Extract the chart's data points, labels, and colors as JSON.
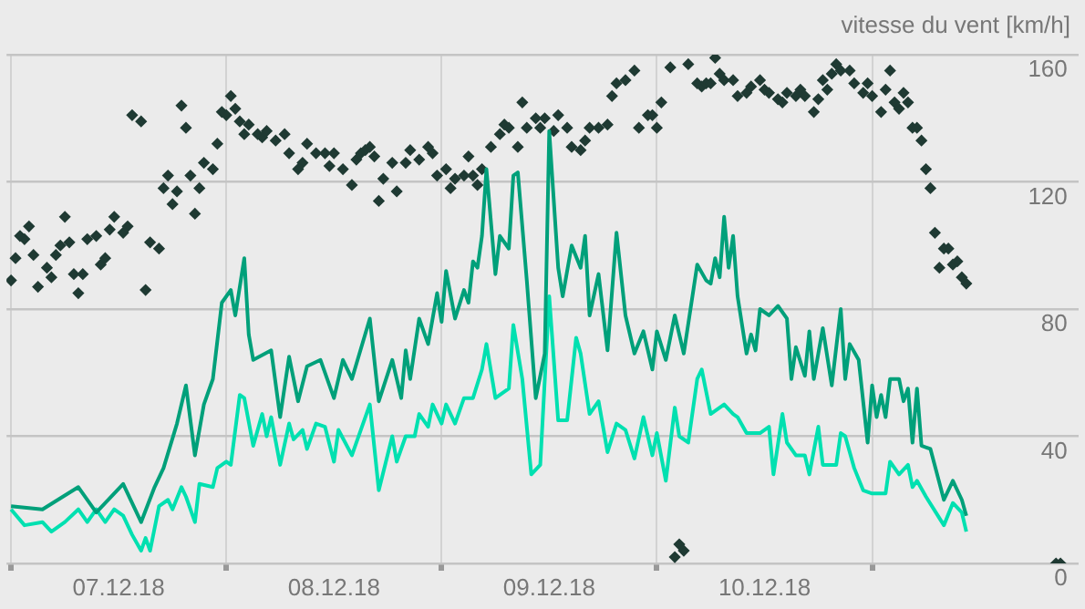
{
  "chart_data": {
    "type": "line",
    "ylabel": "vitesse du vent [km/h]",
    "xlim": [
      "--12-06T23:30",
      "--12-11T23:00"
    ],
    "xticks": [
      {
        "value": "--12-07",
        "label": null
      },
      {
        "value": "--12-07T12:00",
        "label": "07.12.18"
      },
      {
        "value": "--12-08",
        "label": null
      },
      {
        "value": "--12-08T12:00",
        "label": "08.12.18"
      },
      {
        "value": "--12-09",
        "label": null
      },
      {
        "value": "--12-09T12:00",
        "label": "09.12.18"
      },
      {
        "value": "--12-10",
        "label": null
      },
      {
        "value": "--12-10T12:00",
        "label": "10.12.18"
      },
      {
        "value": "--12-11",
        "label": null
      }
    ],
    "ylim": [
      0,
      160
    ],
    "yticks": [
      0,
      40,
      80,
      120,
      160
    ],
    "grid": true,
    "legend": false,
    "series": [
      {
        "type": "line",
        "marker": "none",
        "line_style": "solid",
        "color": "#00a07a",
        "x": [
          "--12-07T00:00",
          "--12-07T03:30",
          "--12-07T07:30",
          "--12-07T09:30",
          "--12-07T12:30",
          "--12-07T14:30",
          "--12-07T16:00",
          "--12-07T17:00",
          "--12-07T18:30",
          "--12-07T19:30",
          "--12-07T20:30",
          "--12-07T21:30",
          "--12-07T22:30",
          "--12-07T23:30",
          "--12-08T00:30",
          "--12-08T01:00",
          "--12-08T02:00",
          "--12-08T02:30",
          "--12-08T03:00",
          "--12-08T05:00",
          "--12-08T06:00",
          "--12-08T07:00",
          "--12-08T08:00",
          "--12-08T09:00",
          "--12-08T10:30",
          "--12-08T12:00",
          "--12-08T13:00",
          "--12-08T14:00",
          "--12-08T16:00",
          "--12-08T17:00",
          "--12-08T18:30",
          "--12-08T19:30",
          "--12-08T20:00",
          "--12-08T20:30",
          "--12-08T21:30",
          "--12-08T22:30",
          "--12-08T23:30",
          "--12-09T00:00",
          "--12-09T00:30",
          "--12-09T01:30",
          "--12-09T02:30",
          "--12-09T03:00",
          "--12-09T03:30",
          "--12-09T04:00",
          "--12-09T04:30",
          "--12-09T05:00",
          "--12-09T06:00",
          "--12-09T06:30",
          "--12-09T07:30",
          "--12-09T08:00",
          "--12-09T08:30",
          "--12-09T09:30",
          "--12-09T10:30",
          "--12-09T11:30",
          "--12-09T12:00",
          "--12-09T13:00",
          "--12-09T13:30",
          "--12-09T14:30",
          "--12-09T15:30",
          "--12-09T16:00",
          "--12-09T16:30",
          "--12-09T17:30",
          "--12-09T18:30",
          "--12-09T19:30",
          "--12-09T20:30",
          "--12-09T21:30",
          "--12-09T22:30",
          "--12-09T23:30",
          "--12-10T00:00",
          "--12-10T01:00",
          "--12-10T02:00",
          "--12-10T03:00",
          "--12-10T04:30",
          "--12-10T05:30",
          "--12-10T06:00",
          "--12-10T06:30",
          "--12-10T07:00",
          "--12-10T07:30",
          "--12-10T08:00",
          "--12-10T08:30",
          "--12-10T09:00",
          "--12-10T10:00",
          "--12-10T10:30",
          "--12-10T11:00",
          "--12-10T11:30",
          "--12-10T12:30",
          "--12-10T13:30",
          "--12-10T14:30",
          "--12-10T15:00",
          "--12-10T15:30",
          "--12-10T16:30",
          "--12-10T17:00",
          "--12-10T17:30",
          "--12-10T18:30",
          "--12-10T19:30",
          "--12-10T20:30",
          "--12-10T21:00",
          "--12-10T21:30",
          "--12-10T22:30",
          "--12-10T23:30",
          "--12-11T00:00",
          "--12-11T00:30",
          "--12-11T01:00",
          "--12-11T01:30",
          "--12-11T02:00",
          "--12-11T03:00",
          "--12-11T03:30",
          "--12-11T04:00",
          "--12-11T04:30",
          "--12-11T05:00",
          "--12-11T05:30",
          "--12-11T06:30",
          "--12-11T08:00",
          "--12-11T09:00",
          "--12-11T10:00",
          "--12-11T10:30"
        ],
        "values": [
          18,
          17,
          24,
          16,
          25,
          13,
          24,
          30,
          44,
          56,
          34,
          50,
          58,
          82,
          86,
          78,
          96,
          72,
          64,
          67,
          46,
          65,
          51,
          62,
          64,
          52,
          64,
          58,
          77,
          51,
          64,
          52,
          67,
          58,
          77,
          69,
          85,
          76,
          92,
          77,
          86,
          82,
          95,
          93,
          103,
          124,
          91,
          103,
          99,
          122,
          123,
          89,
          52,
          66,
          136,
          93,
          84,
          100,
          93,
          103,
          78,
          91,
          67,
          104,
          78,
          66,
          73,
          61,
          73,
          64,
          78,
          66,
          94,
          89,
          88,
          96,
          90,
          109,
          93,
          103,
          84,
          66,
          72,
          67,
          80,
          78,
          81,
          77,
          58,
          68,
          59,
          73,
          58,
          74,
          56,
          80,
          58,
          69,
          64,
          38,
          56,
          46,
          53,
          46,
          58,
          58,
          51,
          55,
          38,
          55,
          37,
          36,
          20,
          26,
          20,
          15
        ]
      },
      {
        "type": "line",
        "marker": "none",
        "line_style": "solid",
        "color": "#00e0b0",
        "x": [
          "--12-07T00:00",
          "--12-07T01:30",
          "--12-07T03:30",
          "--12-07T04:30",
          "--12-07T06:00",
          "--12-07T07:30",
          "--12-07T08:30",
          "--12-07T09:30",
          "--12-07T10:30",
          "--12-07T11:30",
          "--12-07T12:30",
          "--12-07T13:30",
          "--12-07T14:30",
          "--12-07T15:00",
          "--12-07T15:30",
          "--12-07T16:30",
          "--12-07T17:30",
          "--12-07T18:00",
          "--12-07T19:00",
          "--12-07T19:30",
          "--12-07T20:30",
          "--12-07T21:00",
          "--12-07T22:30",
          "--12-07T23:00",
          "--12-08T00:00",
          "--12-08T00:30",
          "--12-08T01:30",
          "--12-08T02:00",
          "--12-08T03:00",
          "--12-08T04:00",
          "--12-08T04:30",
          "--12-08T05:00",
          "--12-08T06:00",
          "--12-08T07:00",
          "--12-08T07:30",
          "--12-08T08:30",
          "--12-08T09:00",
          "--12-08T10:00",
          "--12-08T11:00",
          "--12-08T12:00",
          "--12-08T12:30",
          "--12-08T14:00",
          "--12-08T16:00",
          "--12-08T17:00",
          "--12-08T18:30",
          "--12-08T19:00",
          "--12-08T20:00",
          "--12-08T21:00",
          "--12-08T21:30",
          "--12-08T22:30",
          "--12-08T23:00",
          "--12-09T00:00",
          "--12-09T00:30",
          "--12-09T01:30",
          "--12-09T02:30",
          "--12-09T03:30",
          "--12-09T04:30",
          "--12-09T05:00",
          "--12-09T06:00",
          "--12-09T07:30",
          "--12-09T08:00",
          "--12-09T09:00",
          "--12-09T10:00",
          "--12-09T11:00",
          "--12-09T12:00",
          "--12-09T13:00",
          "--12-09T14:00",
          "--12-09T15:00",
          "--12-09T15:30",
          "--12-09T16:30",
          "--12-09T17:30",
          "--12-09T18:30",
          "--12-09T19:30",
          "--12-09T20:30",
          "--12-09T21:30",
          "--12-09T22:30",
          "--12-09T23:30",
          "--12-10T00:00",
          "--12-10T01:00",
          "--12-10T02:00",
          "--12-10T02:30",
          "--12-10T03:30",
          "--12-10T04:30",
          "--12-10T05:00",
          "--12-10T06:00",
          "--12-10T07:30",
          "--12-10T08:30",
          "--12-10T09:00",
          "--12-10T10:00",
          "--12-10T11:30",
          "--12-10T12:30",
          "--12-10T13:00",
          "--12-10T14:00",
          "--12-10T14:30",
          "--12-10T15:30",
          "--12-10T16:30",
          "--12-10T17:00",
          "--12-10T18:00",
          "--12-10T18:30",
          "--12-10T20:00",
          "--12-10T20:30",
          "--12-10T21:00",
          "--12-10T22:00",
          "--12-10T23:00",
          "--12-11T00:00",
          "--12-11T01:30",
          "--12-11T02:00",
          "--12-11T03:00",
          "--12-11T04:00",
          "--12-11T04:30",
          "--12-11T05:00",
          "--12-11T06:00",
          "--12-11T08:00",
          "--12-11T09:00",
          "--12-11T10:00",
          "--12-11T10:30"
        ],
        "values": [
          17,
          12,
          13,
          10,
          13,
          17,
          13,
          17,
          13,
          17,
          15,
          9,
          4,
          8,
          4,
          18,
          20,
          17,
          24,
          21,
          13,
          25,
          24,
          30,
          32,
          31,
          53,
          52,
          37,
          47,
          40,
          46,
          31,
          44,
          39,
          42,
          36,
          44,
          43,
          32,
          42,
          34,
          50,
          23,
          40,
          32,
          40,
          40,
          47,
          43,
          50,
          44,
          50,
          44,
          52,
          52,
          61,
          69,
          52,
          55,
          75,
          58,
          28,
          31,
          84,
          45,
          45,
          71,
          66,
          47,
          51,
          35,
          44,
          42,
          33,
          46,
          34,
          41,
          26,
          49,
          40,
          38,
          58,
          61,
          47,
          50,
          47,
          46,
          41,
          41,
          43,
          28,
          47,
          38,
          34,
          34,
          28,
          43,
          31,
          31,
          41,
          40,
          30,
          23,
          22,
          22,
          32,
          28,
          31,
          24,
          26,
          21,
          12,
          19,
          16,
          10
        ]
      },
      {
        "type": "scatter",
        "marker": "diamond",
        "color": "#1f3a33",
        "x": [
          "--12-07T00:00",
          "--12-07T00:30",
          "--12-07T01:00",
          "--12-07T01:30",
          "--12-07T02:00",
          "--12-07T02:30",
          "--12-07T03:00",
          "--12-07T04:00",
          "--12-07T04:30",
          "--12-07T05:00",
          "--12-07T05:30",
          "--12-07T06:00",
          "--12-07T06:30",
          "--12-07T07:00",
          "--12-07T07:30",
          "--12-07T08:00",
          "--12-07T08:30",
          "--12-07T09:30",
          "--12-07T10:00",
          "--12-07T10:30",
          "--12-07T11:00",
          "--12-07T11:30",
          "--12-07T12:30",
          "--12-07T13:00",
          "--12-07T13:30",
          "--12-07T14:30",
          "--12-07T15:00",
          "--12-07T15:30",
          "--12-07T16:30",
          "--12-07T17:00",
          "--12-07T17:30",
          "--12-07T18:00",
          "--12-07T18:30",
          "--12-07T19:00",
          "--12-07T19:30",
          "--12-07T20:00",
          "--12-07T20:30",
          "--12-07T21:00",
          "--12-07T21:30",
          "--12-07T22:30",
          "--12-07T23:00",
          "--12-07T23:30",
          "--12-08T00:00",
          "--12-08T00:30",
          "--12-08T01:00",
          "--12-08T01:30",
          "--12-08T02:00",
          "--12-08T02:30",
          "--12-08T03:30",
          "--12-08T04:00",
          "--12-08T04:30",
          "--12-08T05:30",
          "--12-08T06:30",
          "--12-08T07:00",
          "--12-08T08:00",
          "--12-08T08:30",
          "--12-08T09:00",
          "--12-08T10:00",
          "--12-08T11:00",
          "--12-08T11:30",
          "--12-08T12:00",
          "--12-08T13:00",
          "--12-08T14:00",
          "--12-08T14:30",
          "--12-08T15:00",
          "--12-08T15:30",
          "--12-08T16:00",
          "--12-08T16:30",
          "--12-08T17:00",
          "--12-08T17:30",
          "--12-08T18:30",
          "--12-08T19:00",
          "--12-08T20:00",
          "--12-08T20:30",
          "--12-08T21:30",
          "--12-08T22:30",
          "--12-08T23:00",
          "--12-08T23:30",
          "--12-09T00:30",
          "--12-09T01:00",
          "--12-09T01:30",
          "--12-09T02:30",
          "--12-09T03:00",
          "--12-09T03:30",
          "--12-09T04:00",
          "--12-09T04:30",
          "--12-09T05:30",
          "--12-09T06:30",
          "--12-09T07:00",
          "--12-09T07:30",
          "--12-09T08:30",
          "--12-09T09:00",
          "--12-09T09:30",
          "--12-09T10:30",
          "--12-09T11:00",
          "--12-09T11:30",
          "--12-09T12:30",
          "--12-09T13:00",
          "--12-09T14:00",
          "--12-09T14:30",
          "--12-09T15:30",
          "--12-09T16:00",
          "--12-09T16:30",
          "--12-09T17:30",
          "--12-09T18:30",
          "--12-09T19:00",
          "--12-09T19:30",
          "--12-09T20:30",
          "--12-09T21:30",
          "--12-09T22:00",
          "--12-09T23:00",
          "--12-09T23:30",
          "--12-10T00:00",
          "--12-10T00:30",
          "--12-10T01:30",
          "--12-10T02:00",
          "--12-10T02:30",
          "--12-10T03:00",
          "--12-10T03:30",
          "--12-10T04:30",
          "--12-10T05:00",
          "--12-10T05:30",
          "--12-10T06:00",
          "--12-10T06:30",
          "--12-10T07:00",
          "--12-10T07:30",
          "--12-10T08:30",
          "--12-10T09:00",
          "--12-10T10:00",
          "--12-10T10:30",
          "--12-10T11:30",
          "--12-10T12:00",
          "--12-10T12:30",
          "--12-10T13:30",
          "--12-10T14:00",
          "--12-10T14:30",
          "--12-10T15:30",
          "--12-10T16:00",
          "--12-10T16:30",
          "--12-10T17:30",
          "--12-10T18:00",
          "--12-10T18:30",
          "--12-10T19:00",
          "--12-10T19:30",
          "--12-10T20:00",
          "--12-10T20:30",
          "--12-10T21:30",
          "--12-10T22:00",
          "--12-10T23:00",
          "--12-10T23:30",
          "--12-11T00:00",
          "--12-11T01:00",
          "--12-11T01:30",
          "--12-11T02:00",
          "--12-11T02:30",
          "--12-11T03:00",
          "--12-11T03:30",
          "--12-11T04:00",
          "--12-11T04:30",
          "--12-11T05:00",
          "--12-11T05:30",
          "--12-11T06:00",
          "--12-11T06:30",
          "--12-11T07:00",
          "--12-11T07:30",
          "--12-11T08:00",
          "--12-11T08:30",
          "--12-11T09:00",
          "--12-11T09:30",
          "--12-11T10:00",
          "--12-11T10:30",
          "--12-11T20:30",
          "--12-11T21:00"
        ],
        "values": [
          89,
          96,
          103,
          102,
          106,
          97,
          87,
          93,
          90,
          97,
          100,
          109,
          101,
          91,
          85,
          91,
          102,
          103,
          94,
          96,
          105,
          109,
          104,
          106,
          141,
          139,
          86,
          101,
          99,
          118,
          122,
          113,
          117,
          144,
          137,
          122,
          110,
          118,
          126,
          124,
          132,
          142,
          141,
          147,
          143,
          139,
          135,
          138,
          135,
          134,
          136,
          133,
          135,
          129,
          124,
          126,
          132,
          129,
          129,
          125,
          129,
          124,
          119,
          127,
          129,
          130,
          131,
          128,
          114,
          121,
          126,
          117,
          126,
          130,
          127,
          131,
          129,
          122,
          124,
          118,
          121,
          122,
          128,
          122,
          119,
          124,
          131,
          135,
          138,
          137,
          131,
          145,
          137,
          140,
          137,
          140,
          136,
          141,
          137,
          131,
          130,
          133,
          137,
          137,
          138,
          147,
          151,
          152,
          155,
          137,
          141,
          141,
          137,
          145,
          156,
          2,
          6,
          4,
          157,
          151,
          150,
          151,
          151,
          159,
          154,
          152,
          152,
          147,
          148,
          150,
          152,
          149,
          148,
          146,
          145,
          148,
          147,
          149,
          147,
          142,
          146,
          152,
          149,
          154,
          157,
          155,
          155,
          151,
          148,
          151,
          147,
          142,
          149,
          155,
          145,
          143,
          148,
          145,
          137,
          137,
          133,
          124,
          118,
          104,
          93,
          99,
          99,
          94,
          95,
          90,
          88,
          0,
          0
        ]
      }
    ]
  }
}
